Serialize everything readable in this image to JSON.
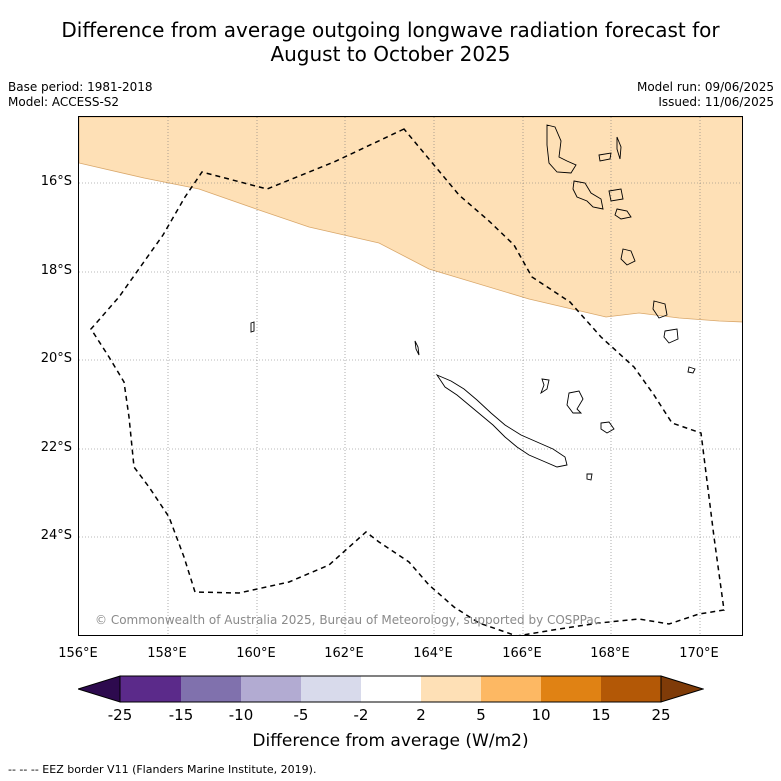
{
  "title_line1": "Difference from average outgoing longwave radiation forecast for",
  "title_line2": "August to October 2025",
  "base_period": "Base period: 1981-2018",
  "model": "Model: ACCESS-S2",
  "model_run": "Model run: 09/06/2025",
  "issued": "Issued: 11/06/2025",
  "copyright": "© Commonwealth of Australia 2025, Bureau of Meteorology, supported by COSPPac",
  "lat_labels": [
    "16°S",
    "18°S",
    "20°S",
    "22°S",
    "24°S"
  ],
  "lon_labels": [
    "156°E",
    "158°E",
    "160°E",
    "162°E",
    "164°E",
    "166°E",
    "168°E",
    "170°E"
  ],
  "colorbar": {
    "ticks": [
      "-25",
      "-15",
      "-10",
      "-5",
      "-2",
      "2",
      "5",
      "10",
      "15",
      "25"
    ],
    "colors": [
      "#2d0a4e",
      "#5b2a8a",
      "#8071ad",
      "#b2abd2",
      "#d8daeb",
      "#ffffff",
      "#fee0b6",
      "#fdb863",
      "#e08214",
      "#b35806",
      "#7f3b08"
    ],
    "label": "Difference from average (W/m2)"
  },
  "legend_note": "-- -- -- EEZ border V11 (Flanders Marine Institute, 2019)."
}
